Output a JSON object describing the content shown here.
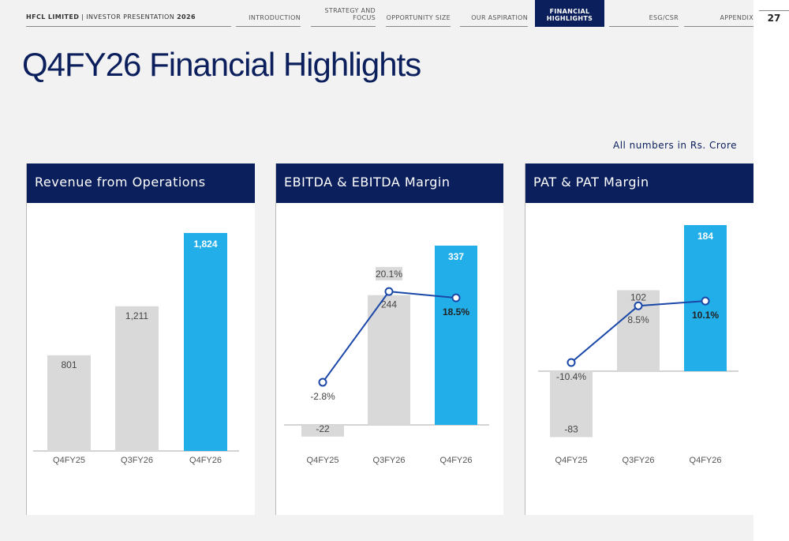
{
  "header": {
    "brand_bold": "HFCL LIMITED",
    "brand_rest": " | INVESTOR PRESENTATION ",
    "brand_year": "2026",
    "nav": [
      {
        "label": "INTRODUCTION",
        "active": false
      },
      {
        "label": "STRATEGY AND FOCUS",
        "active": false
      },
      {
        "label": "OPPORTUNITY SIZE",
        "active": false
      },
      {
        "label": "OUR ASPIRATION",
        "active": false
      },
      {
        "label": "FINANCIAL HIGHLIGHTS",
        "active": true
      },
      {
        "label": "ESG/CSR",
        "active": false
      },
      {
        "label": "APPENDIX",
        "active": false
      }
    ],
    "page_number": "27"
  },
  "title": "Q4FY26 Financial Highlights",
  "units_note": "All numbers in Rs. Crore",
  "colors": {
    "navy": "#0b1f5c",
    "highlight": "#22aee8",
    "bar": "#d9d9d9",
    "line": "#1a47a8"
  },
  "chart_data": [
    {
      "type": "bar",
      "title": "Revenue from Operations",
      "categories": [
        "Q4FY25",
        "Q3FY26",
        "Q4FY26"
      ],
      "values": [
        801,
        1211,
        1824
      ],
      "value_labels": [
        "801",
        "1,211",
        "1,824"
      ]
    },
    {
      "type": "bar+line",
      "title": "EBITDA & EBITDA Margin",
      "categories": [
        "Q4FY25",
        "Q3FY26",
        "Q4FY26"
      ],
      "values": [
        -22,
        244,
        337
      ],
      "value_labels": [
        "-22",
        "244",
        "337"
      ],
      "margin": [
        -2.8,
        20.1,
        18.5
      ],
      "margin_labels": [
        "-2.8%",
        "20.1%",
        "18.5%"
      ]
    },
    {
      "type": "bar+line",
      "title": "PAT & PAT Margin",
      "categories": [
        "Q4FY25",
        "Q3FY26",
        "Q4FY26"
      ],
      "values": [
        -83,
        102,
        184
      ],
      "value_labels": [
        "-83",
        "102",
        "184"
      ],
      "margin": [
        -10.4,
        8.5,
        10.1
      ],
      "margin_labels": [
        "-10.4%",
        "8.5%",
        "10.1%"
      ]
    }
  ]
}
